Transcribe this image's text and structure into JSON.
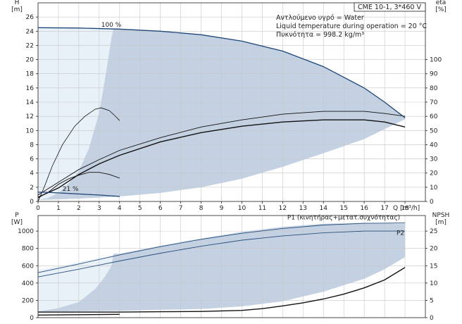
{
  "chart_data": [
    {
      "type": "line",
      "panel": "head-efficiency",
      "title": "CME 10-1, 3*460 V",
      "info": [
        "Αντλούμενο υγρό = Water",
        "Liquid temperature during operation = 20 °C",
        "Πυκνότητα = 998.2 kg/m³"
      ],
      "x_axis": {
        "label": "Q [m³/h]",
        "range": [
          0,
          19
        ],
        "ticks": [
          0,
          1,
          2,
          3,
          4,
          5,
          6,
          7,
          8,
          9,
          10,
          11,
          12,
          13,
          14,
          15,
          16,
          17,
          18
        ]
      },
      "y_left": {
        "label_top": "H",
        "label_unit": "[m]",
        "range": [
          0,
          28
        ],
        "ticks": [
          0,
          2,
          4,
          6,
          8,
          10,
          12,
          14,
          16,
          18,
          20,
          22,
          24,
          26
        ]
      },
      "y_right": {
        "label_top": "eta",
        "label_unit": "[%]",
        "range": [
          0,
          140
        ],
        "ticks": [
          0,
          10,
          20,
          30,
          40,
          50,
          60,
          70,
          80,
          90,
          100
        ]
      },
      "speed_labels": [
        {
          "text": "100 %",
          "x": 3.1,
          "y": 24.6
        },
        {
          "text": "21 %",
          "x": 1.2,
          "y": 1.5
        }
      ],
      "operating_area": {
        "upper": [
          [
            0,
            24.5
          ],
          [
            2,
            24.45
          ],
          [
            4,
            24.3
          ],
          [
            6,
            24.0
          ],
          [
            8,
            23.5
          ],
          [
            10,
            22.6
          ],
          [
            12,
            21.2
          ],
          [
            14,
            19.0
          ],
          [
            16,
            16.0
          ],
          [
            17,
            14.0
          ],
          [
            18,
            11.8
          ]
        ],
        "lower": [
          [
            0,
            0.2
          ],
          [
            2,
            0.4
          ],
          [
            4,
            0.7
          ],
          [
            6,
            1.2
          ],
          [
            8,
            2.0
          ],
          [
            10,
            3.2
          ],
          [
            12,
            4.9
          ],
          [
            14,
            6.8
          ],
          [
            16,
            8.8
          ],
          [
            17,
            10.2
          ],
          [
            18,
            11.6
          ]
        ],
        "left_boundary": [
          [
            0,
            0.2
          ],
          [
            0.5,
            0.5
          ],
          [
            1,
            1.2
          ],
          [
            1.5,
            2.5
          ],
          [
            2,
            4.3
          ],
          [
            2.5,
            7.5
          ],
          [
            3,
            12.5
          ],
          [
            3.3,
            17.5
          ],
          [
            3.6,
            23.0
          ],
          [
            3.7,
            24.4
          ]
        ]
      },
      "series": [
        {
          "axis": "left",
          "values": [
            [
              0,
              0.6
            ],
            [
              1,
              1.9
            ],
            [
              2,
              3.8
            ],
            [
              3,
              5.3
            ],
            [
              4,
              6.5
            ],
            [
              6,
              8.4
            ],
            [
              8,
              9.7
            ],
            [
              10,
              10.6
            ],
            [
              12,
              11.2
            ],
            [
              14,
              11.5
            ],
            [
              16,
              11.5
            ],
            [
              17,
              11.2
            ],
            [
              18,
              10.5
            ]
          ]
        },
        {
          "axis": "left",
          "values": [
            [
              0,
              0.9
            ],
            [
              1,
              2.7
            ],
            [
              2,
              4.5
            ],
            [
              3,
              5.9
            ],
            [
              4,
              7.2
            ],
            [
              6,
              9.0
            ],
            [
              8,
              10.5
            ],
            [
              10,
              11.5
            ],
            [
              12,
              12.3
            ],
            [
              14,
              12.7
            ],
            [
              16,
              12.7
            ],
            [
              17,
              12.4
            ],
            [
              18,
              12.0
            ]
          ]
        },
        {
          "axis": "left",
          "values": [
            [
              0,
              0.5
            ],
            [
              0.5,
              1.3
            ],
            [
              1,
              2.4
            ],
            [
              1.5,
              3.2
            ],
            [
              2,
              3.7
            ],
            [
              2.5,
              4.1
            ],
            [
              3,
              4.1
            ],
            [
              3.5,
              3.8
            ],
            [
              4,
              3.3
            ]
          ]
        },
        {
          "axis": "left",
          "values": [
            [
              0,
              1.3
            ],
            [
              0.5,
              1.28
            ],
            [
              1,
              1.2
            ],
            [
              2,
              1.05
            ],
            [
              3,
              0.9
            ],
            [
              4,
              0.7
            ]
          ]
        },
        {
          "axis": "right",
          "values": [
            [
              0,
              0
            ],
            [
              0.3,
              10
            ],
            [
              0.7,
              25
            ],
            [
              1.2,
              40
            ],
            [
              1.8,
              53
            ],
            [
              2.3,
              60
            ],
            [
              2.8,
              65
            ],
            [
              3.1,
              66
            ],
            [
              3.5,
              64
            ],
            [
              3.8,
              60
            ],
            [
              4,
              57
            ]
          ]
        }
      ]
    },
    {
      "type": "line",
      "panel": "power-npsh",
      "x_axis": {
        "range": [
          0,
          19
        ],
        "ticks": [
          0,
          1,
          2,
          3,
          4,
          5,
          6,
          7,
          8,
          9,
          10,
          11,
          12,
          13,
          14,
          15,
          16,
          17,
          18
        ]
      },
      "y_left": {
        "label_top": "P",
        "label_unit": "[W]",
        "range": [
          0,
          1180
        ],
        "ticks": [
          0,
          200,
          400,
          600,
          800,
          1000
        ]
      },
      "y_right": {
        "label_top": "NPSH",
        "label_unit": "[m]",
        "range": [
          0,
          29.5
        ],
        "ticks": [
          0,
          5,
          10,
          15,
          20,
          25
        ]
      },
      "series_labels": [
        {
          "text": "P1 (κινητήρας+μετατ.συχνότητας)",
          "x": 17.9,
          "y": 1135
        },
        {
          "text": "P2",
          "x": 17.9,
          "y": 955
        }
      ],
      "operating_area": {
        "upper": [
          [
            0,
            550
          ],
          [
            2,
            640
          ],
          [
            4,
            740
          ],
          [
            6,
            830
          ],
          [
            8,
            915
          ],
          [
            10,
            990
          ],
          [
            12,
            1050
          ],
          [
            14,
            1085
          ],
          [
            16,
            1095
          ],
          [
            17,
            1090
          ],
          [
            18,
            1085
          ]
        ],
        "lower": [
          [
            0,
            70
          ],
          [
            2,
            75
          ],
          [
            4,
            80
          ],
          [
            6,
            90
          ],
          [
            8,
            100
          ],
          [
            10,
            130
          ],
          [
            12,
            190
          ],
          [
            14,
            300
          ],
          [
            16,
            450
          ],
          [
            17,
            560
          ],
          [
            18,
            700
          ]
        ],
        "left_boundary": [
          [
            0,
            70
          ],
          [
            1,
            110
          ],
          [
            2,
            180
          ],
          [
            2.8,
            330
          ],
          [
            3.3,
            480
          ],
          [
            3.6,
            600
          ],
          [
            3.7,
            740
          ]
        ]
      },
      "series": [
        {
          "name": "P1",
          "axis": "left",
          "values": [
            [
              0,
              520
            ],
            [
              2,
              620
            ],
            [
              4,
              725
            ],
            [
              6,
              820
            ],
            [
              8,
              905
            ],
            [
              10,
              975
            ],
            [
              12,
              1030
            ],
            [
              14,
              1070
            ],
            [
              16,
              1090
            ],
            [
              17,
              1092
            ],
            [
              18,
              1095
            ]
          ]
        },
        {
          "name": "P2",
          "axis": "left",
          "values": [
            [
              0,
              470
            ],
            [
              2,
              560
            ],
            [
              4,
              655
            ],
            [
              6,
              745
            ],
            [
              8,
              825
            ],
            [
              10,
              895
            ],
            [
              12,
              945
            ],
            [
              14,
              980
            ],
            [
              16,
              1000
            ],
            [
              17,
              1000
            ],
            [
              18,
              1000
            ]
          ]
        },
        {
          "axis": "left",
          "values": [
            [
              0,
              30
            ],
            [
              1,
              32
            ],
            [
              2,
              34
            ],
            [
              3,
              36
            ],
            [
              4,
              38
            ]
          ]
        },
        {
          "axis": "right",
          "values": [
            [
              0,
              1.6
            ],
            [
              2,
              1.6
            ],
            [
              4,
              1.6
            ],
            [
              6,
              1.7
            ],
            [
              8,
              1.8
            ],
            [
              10,
              2.1
            ],
            [
              11,
              2.6
            ],
            [
              12,
              3.4
            ],
            [
              13,
              4.3
            ],
            [
              14,
              5.4
            ],
            [
              15,
              6.8
            ],
            [
              16,
              8.6
            ],
            [
              17,
              10.9
            ],
            [
              18,
              14.5
            ]
          ]
        }
      ]
    }
  ]
}
